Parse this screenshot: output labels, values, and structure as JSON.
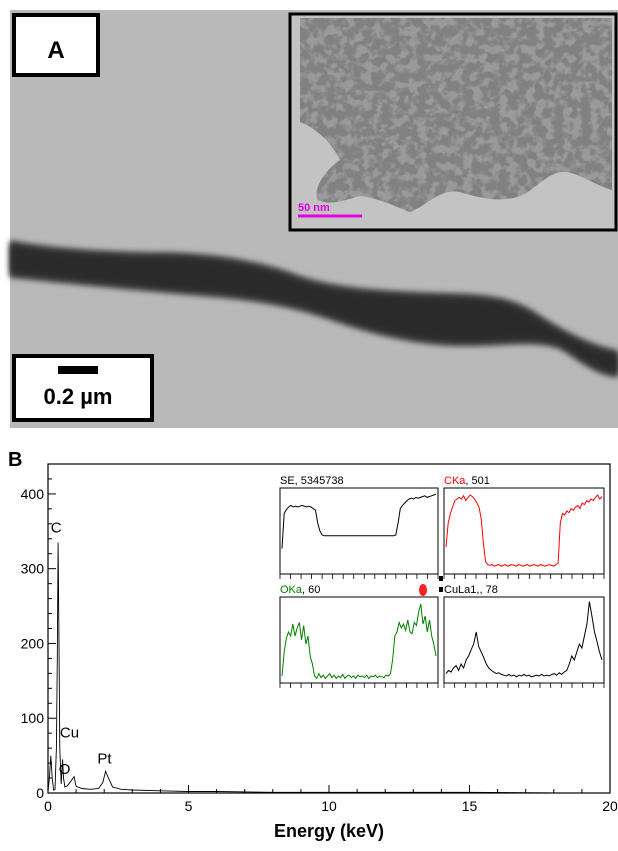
{
  "panel_a": {
    "label": "A",
    "scale_bar": "0.2 µm",
    "inset_scale_bar": "50 nm",
    "colors": {
      "inset_scale": "#e000e0"
    }
  },
  "panel_b": {
    "label": "B"
  },
  "chart_data": [
    {
      "type": "line",
      "title": "",
      "xlabel": "Energy (keV)",
      "ylabel": "",
      "xlim": [
        0,
        20
      ],
      "ylim": [
        0,
        440
      ],
      "xticks": [
        0,
        5,
        10,
        15,
        20
      ],
      "yticks": [
        0,
        100,
        200,
        300,
        400
      ],
      "grid": false,
      "series": [
        {
          "points": [
            [
              0.0,
              2
            ],
            [
              0.05,
              20
            ],
            [
              0.1,
              50
            ],
            [
              0.15,
              20
            ],
            [
              0.2,
              4
            ],
            [
              0.25,
              5
            ],
            [
              0.3,
              60
            ],
            [
              0.33,
              180
            ],
            [
              0.36,
              335
            ],
            [
              0.39,
              200
            ],
            [
              0.42,
              60
            ],
            [
              0.47,
              12
            ],
            [
              0.52,
              45
            ],
            [
              0.55,
              20
            ],
            [
              0.6,
              8
            ],
            [
              0.7,
              10
            ],
            [
              0.93,
              22
            ],
            [
              1.0,
              9
            ],
            [
              1.2,
              6
            ],
            [
              1.5,
              5
            ],
            [
              1.8,
              6
            ],
            [
              1.95,
              14
            ],
            [
              2.05,
              29
            ],
            [
              2.15,
              20
            ],
            [
              2.3,
              8
            ],
            [
              2.6,
              5
            ],
            [
              3.0,
              4
            ],
            [
              4.0,
              3
            ],
            [
              5.0,
              2
            ],
            [
              6.0,
              2
            ],
            [
              8.0,
              1
            ],
            [
              10.0,
              1
            ],
            [
              12.0,
              1
            ],
            [
              15.0,
              1
            ],
            [
              18.0,
              0
            ],
            [
              20.0,
              0
            ]
          ]
        }
      ],
      "annotations": [
        {
          "text": "C",
          "x": 0.36,
          "y": 335
        },
        {
          "text": "Cu",
          "x": 0.55,
          "y": 45
        },
        {
          "text": "O",
          "x": 0.45,
          "y": 12
        },
        {
          "text": "Pt",
          "x": 2.15,
          "y": 29
        }
      ]
    },
    {
      "type": "line",
      "title": "SE, 5345738",
      "series": [
        {
          "values": [
            0.28,
            0.72,
            0.77,
            0.8,
            0.82,
            0.8,
            0.81,
            0.8,
            0.81,
            0.82,
            0.81,
            0.8,
            0.81,
            0.8,
            0.78,
            0.76,
            0.6,
            0.5,
            0.45,
            0.44,
            0.44,
            0.44,
            0.44,
            0.44,
            0.44,
            0.44,
            0.44,
            0.44,
            0.44,
            0.44,
            0.44,
            0.44,
            0.44,
            0.44,
            0.44,
            0.44,
            0.44,
            0.44,
            0.44,
            0.44,
            0.44,
            0.44,
            0.44,
            0.44,
            0.44,
            0.44,
            0.44,
            0.44,
            0.44,
            0.44,
            0.44,
            0.45,
            0.6,
            0.78,
            0.82,
            0.85,
            0.88,
            0.9,
            0.91,
            0.9,
            0.92,
            0.91,
            0.92,
            0.93,
            0.94,
            0.92,
            0.93,
            0.94,
            0.95,
            0.96
          ]
        }
      ],
      "colors": {
        "line": "#000000"
      }
    },
    {
      "type": "line",
      "title_element": "CKa",
      "title_count": "501",
      "series": [
        {
          "values": [
            0.3,
            0.6,
            0.72,
            0.8,
            0.88,
            0.9,
            0.92,
            0.9,
            0.94,
            0.88,
            0.92,
            0.95,
            0.93,
            0.9,
            0.85,
            0.8,
            0.65,
            0.35,
            0.12,
            0.08,
            0.07,
            0.08,
            0.06,
            0.07,
            0.08,
            0.06,
            0.07,
            0.08,
            0.06,
            0.07,
            0.08,
            0.07,
            0.06,
            0.08,
            0.07,
            0.06,
            0.07,
            0.08,
            0.06,
            0.07,
            0.08,
            0.07,
            0.06,
            0.08,
            0.07,
            0.06,
            0.07,
            0.08,
            0.07,
            0.06,
            0.08,
            0.1,
            0.6,
            0.72,
            0.7,
            0.75,
            0.73,
            0.78,
            0.76,
            0.8,
            0.82,
            0.78,
            0.85,
            0.83,
            0.88,
            0.86,
            0.9,
            0.88,
            0.92,
            0.95,
            0.9,
            0.93
          ]
        }
      ],
      "colors": {
        "line": "#ff0000"
      }
    },
    {
      "type": "line",
      "title_element": "OKa",
      "title_count": "60",
      "series": [
        {
          "values": [
            0.05,
            0.35,
            0.52,
            0.6,
            0.55,
            0.7,
            0.55,
            0.65,
            0.72,
            0.5,
            0.68,
            0.45,
            0.55,
            0.3,
            0.2,
            0.05,
            0.02,
            0.08,
            0.03,
            0.06,
            0.02,
            0.05,
            0.08,
            0.03,
            0.06,
            0.02,
            0.05,
            0.03,
            0.07,
            0.02,
            0.05,
            0.06,
            0.03,
            0.05,
            0.02,
            0.06,
            0.04,
            0.05,
            0.03,
            0.06,
            0.02,
            0.05,
            0.04,
            0.06,
            0.03,
            0.05,
            0.04,
            0.03,
            0.06,
            0.05,
            0.08,
            0.25,
            0.55,
            0.6,
            0.72,
            0.65,
            0.7,
            0.62,
            0.75,
            0.6,
            0.58,
            0.72,
            0.68,
            0.85,
            0.95,
            0.7,
            0.8,
            0.6,
            0.75,
            0.55,
            0.45,
            0.3
          ]
        }
      ],
      "colors": {
        "line": "#008000"
      }
    },
    {
      "type": "line",
      "title": "CuLa1,, 78",
      "series": [
        {
          "values": [
            0.08,
            0.12,
            0.1,
            0.15,
            0.18,
            0.12,
            0.2,
            0.15,
            0.25,
            0.3,
            0.38,
            0.45,
            0.6,
            0.42,
            0.35,
            0.28,
            0.2,
            0.15,
            0.12,
            0.1,
            0.08,
            0.09,
            0.07,
            0.06,
            0.05,
            0.07,
            0.05,
            0.06,
            0.04,
            0.06,
            0.05,
            0.07,
            0.05,
            0.06,
            0.04,
            0.05,
            0.06,
            0.05,
            0.07,
            0.05,
            0.06,
            0.05,
            0.07,
            0.08,
            0.06,
            0.09,
            0.07,
            0.1,
            0.12,
            0.2,
            0.3,
            0.25,
            0.35,
            0.45,
            0.4,
            0.55,
            0.7,
            0.98,
            0.8,
            0.6,
            0.48,
            0.35,
            0.25
          ]
        }
      ],
      "colors": {
        "line": "#000000"
      }
    }
  ]
}
